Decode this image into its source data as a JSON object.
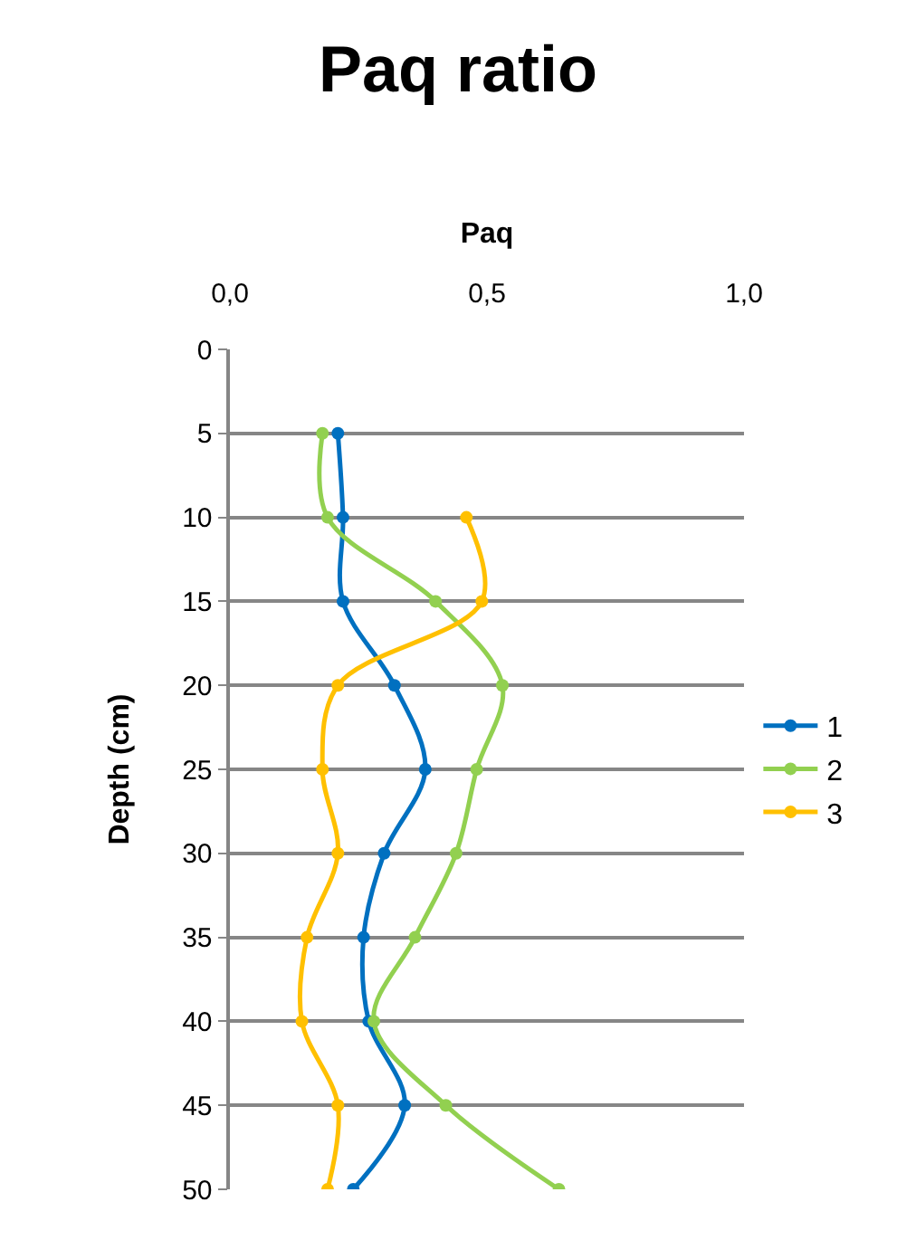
{
  "chart_data": {
    "type": "line",
    "title": "Paq ratio",
    "xlabel": "Paq",
    "ylabel": "Depth (cm)",
    "orientation": "horizontal",
    "x": [
      5,
      10,
      15,
      20,
      25,
      30,
      35,
      40,
      45,
      50
    ],
    "xlim": [
      0,
      1
    ],
    "xticks": [
      {
        "value": 0,
        "label": "0,0"
      },
      {
        "value": 0.5,
        "label": "0,5"
      },
      {
        "value": 1,
        "label": "1,0"
      }
    ],
    "ylim": [
      50,
      0
    ],
    "yticks": [
      0,
      5,
      10,
      15,
      20,
      25,
      30,
      35,
      40,
      45,
      50
    ],
    "grid": "y",
    "legend": "right",
    "marker": "circle",
    "line_style": "solid",
    "series": [
      {
        "name": "1",
        "color": "#0070c0",
        "values": [
          0.21,
          0.22,
          0.22,
          0.32,
          0.38,
          0.3,
          0.26,
          0.27,
          0.34,
          0.24
        ]
      },
      {
        "name": "2",
        "color": "#92d050",
        "values": [
          0.18,
          0.19,
          0.4,
          0.53,
          0.48,
          0.44,
          0.36,
          0.28,
          0.42,
          0.64
        ]
      },
      {
        "name": "3",
        "color": "#ffc000",
        "values": [
          null,
          0.46,
          0.49,
          0.21,
          0.18,
          0.21,
          0.15,
          0.14,
          0.21,
          0.19
        ]
      }
    ]
  }
}
